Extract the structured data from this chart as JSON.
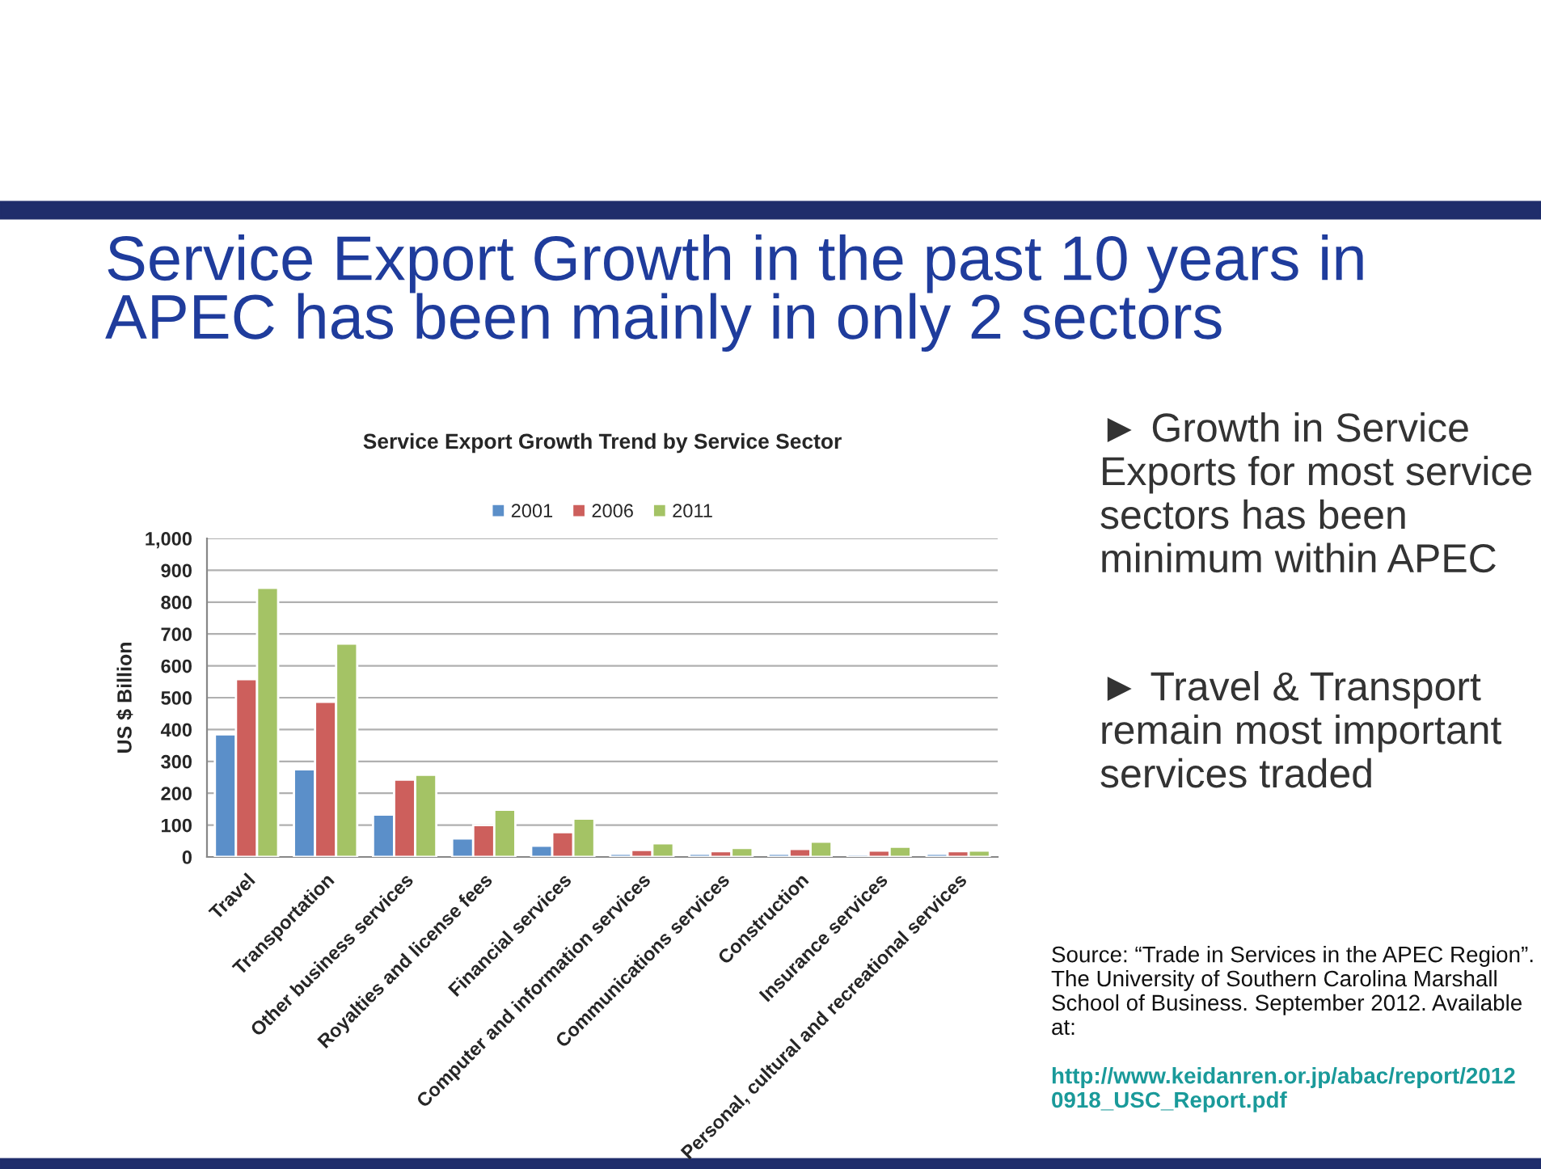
{
  "chart_data": {
    "type": "bar",
    "title": "Service Export Growth in the past 10 years in APEC has been mainly in only 2 sectors",
    "subtitle": "Service Export Growth Trend by Service Sector",
    "ylabel": "US $ Billion",
    "categories": [
      "Travel",
      "Transportation",
      "Other business services",
      "Royalties and license fees",
      "Financial services",
      "Computer and information services",
      "Communications services",
      "Construction",
      "Insurance services",
      "Personal, cultural and recreational services"
    ],
    "series": [
      {
        "name": "2001",
        "color": "#5b8fc9",
        "values": [
          385,
          275,
          133,
          58,
          35,
          10,
          10,
          10,
          8,
          10
        ]
      },
      {
        "name": "2006",
        "color": "#cd5f5c",
        "values": [
          558,
          487,
          243,
          100,
          78,
          22,
          18,
          25,
          20,
          18
        ]
      },
      {
        "name": "2011",
        "color": "#a4c365",
        "values": [
          845,
          670,
          258,
          148,
          120,
          43,
          28,
          48,
          32,
          20
        ]
      }
    ],
    "ylim": [
      0,
      1000
    ],
    "yticks": [
      0,
      100,
      200,
      300,
      400,
      500,
      600,
      700,
      800,
      900,
      {
        "value": 1000,
        "label": "1,000"
      }
    ],
    "grid": "y",
    "legend": "top",
    "annotations": [
      "► Growth in Service Exports for most service sectors has been minimum within APEC",
      "► Travel & Transport remain most important services traded",
      "Source: “Trade in Services in the APEC Region”. The University of Southern Carolina Marshall School of Business. September 2012. Available at:",
      "http://www.keidanren.or.jp/abac/report/20120918_USC_Report.pdf"
    ]
  }
}
